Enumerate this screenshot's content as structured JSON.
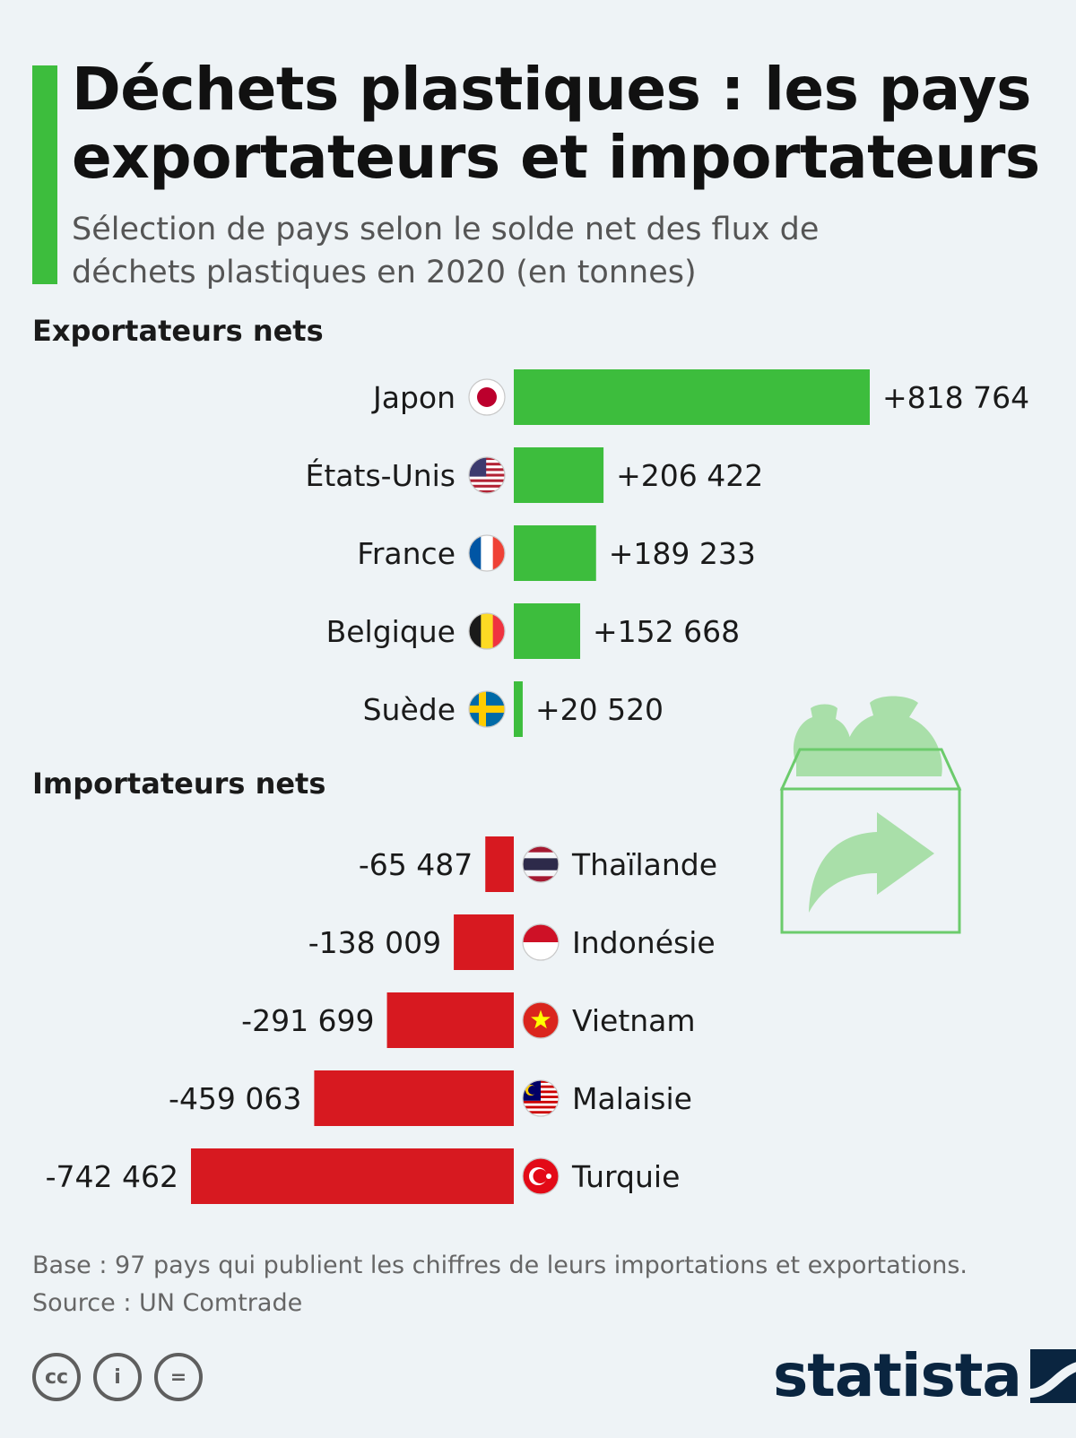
{
  "title": "Déchets plastiques : les pays exportateurs et importateurs",
  "subtitle": "Sélection de pays selon le solde net des flux de déchets plastiques en 2020 (en tonnes)",
  "colors": {
    "accent": "#3dbd3d",
    "exporter": "#3dbd3d",
    "importer": "#d71920"
  },
  "chart_data": [
    {
      "type": "bar",
      "title": "Exportateurs nets",
      "categories": [
        "Japon",
        "États-Unis",
        "France",
        "Belgique",
        "Suède"
      ],
      "values": [
        818764,
        206422,
        189233,
        152668,
        20520
      ],
      "data_labels": [
        "+818 764",
        "+206 422",
        "+189 233",
        "+152 668",
        "+20 520"
      ],
      "flags": [
        "japan-flag-icon",
        "usa-flag-icon",
        "france-flag-icon",
        "belgium-flag-icon",
        "sweden-flag-icon"
      ],
      "color": "#3dbd3d",
      "xlim": [
        -818764,
        818764
      ],
      "grid": false
    },
    {
      "type": "bar",
      "title": "Importateurs nets",
      "categories": [
        "Thaïlande",
        "Indonésie",
        "Vietnam",
        "Malaisie",
        "Turquie"
      ],
      "values": [
        -65487,
        -138009,
        -291699,
        -459063,
        -742462
      ],
      "data_labels": [
        "-65 487",
        "-138 009",
        "-291 699",
        "-459 063",
        "-742 462"
      ],
      "flags": [
        "thailand-flag-icon",
        "indonesia-flag-icon",
        "vietnam-flag-icon",
        "malaysia-flag-icon",
        "turkey-flag-icon"
      ],
      "color": "#d71920",
      "xlim": [
        -818764,
        818764
      ],
      "grid": false
    }
  ],
  "illustration": "waste-box-export-icon",
  "footnote": "Base : 97 pays qui publient les chiffres de leurs importations et exportations.",
  "source": "Source : UN Comtrade",
  "license_icons": [
    "cc-icon",
    "attribution-icon",
    "no-derivatives-icon"
  ],
  "license_icon_labels": [
    "cc",
    "i",
    "="
  ],
  "brand": "statista"
}
